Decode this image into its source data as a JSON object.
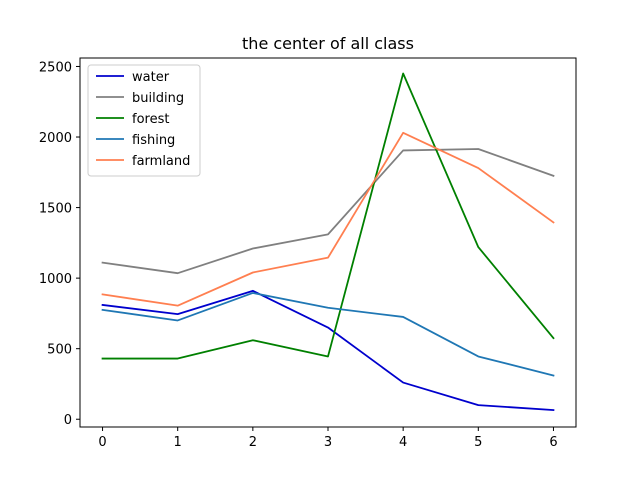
{
  "chart_data": {
    "type": "line",
    "title": "the center of all class",
    "xlabel": "",
    "ylabel": "",
    "x": [
      0,
      1,
      2,
      3,
      4,
      5,
      6
    ],
    "xlim": [
      -0.3,
      6.3
    ],
    "ylim": [
      -55,
      2560
    ],
    "x_ticks": [
      0,
      1,
      2,
      3,
      4,
      5,
      6
    ],
    "y_ticks": [
      0,
      500,
      1000,
      1500,
      2000,
      2500
    ],
    "grid": false,
    "legend_position": "top-left",
    "series": [
      {
        "name": "water",
        "color": "#0000cd",
        "values": [
          810,
          745,
          910,
          650,
          260,
          100,
          65
        ]
      },
      {
        "name": "building",
        "color": "#808080",
        "values": [
          1110,
          1035,
          1210,
          1310,
          1905,
          1915,
          1725
        ]
      },
      {
        "name": "forest",
        "color": "#008000",
        "values": [
          430,
          430,
          560,
          445,
          2450,
          1220,
          575
        ]
      },
      {
        "name": "fishing",
        "color": "#1f77b4",
        "values": [
          775,
          700,
          895,
          790,
          725,
          445,
          310
        ]
      },
      {
        "name": "farmland",
        "color": "#ff7f50",
        "values": [
          885,
          805,
          1040,
          1145,
          2030,
          1780,
          1395
        ]
      }
    ]
  }
}
